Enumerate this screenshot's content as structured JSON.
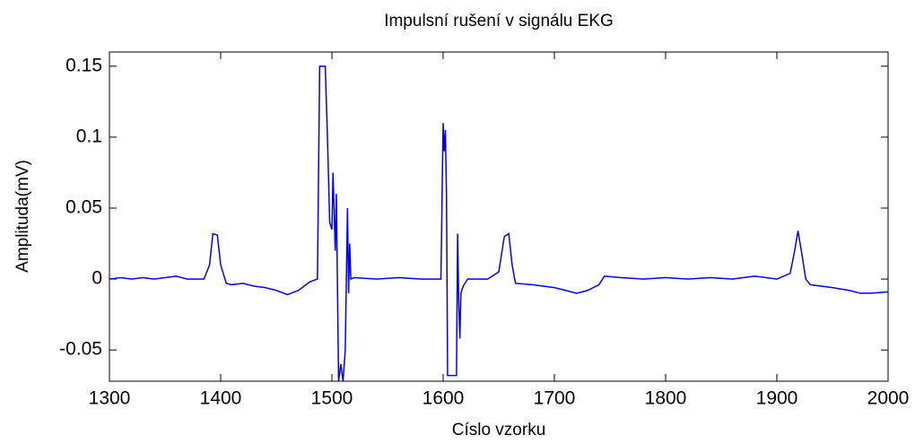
{
  "chart_data": {
    "type": "line",
    "title": "Impulsní rušení v signálu EKG",
    "xlabel": "Císlo vzorku",
    "ylabel": "Amplituda(mV)",
    "x": [
      1300,
      1310,
      1320,
      1330,
      1340,
      1350,
      1360,
      1370,
      1385,
      1390,
      1393,
      1397,
      1400,
      1405,
      1410,
      1420,
      1430,
      1440,
      1450,
      1460,
      1470,
      1480,
      1487,
      1489,
      1494,
      1496,
      1498,
      1500,
      1501,
      1503,
      1504,
      1506,
      1508,
      1510,
      1512,
      1513,
      1514,
      1515,
      1516,
      1517,
      1520,
      1540,
      1560,
      1580,
      1598,
      1600,
      1601,
      1602,
      1603,
      1604,
      1612,
      1613,
      1614,
      1615,
      1616,
      1618,
      1622,
      1640,
      1650,
      1655,
      1659,
      1662,
      1665,
      1680,
      1700,
      1720,
      1730,
      1740,
      1745,
      1760,
      1780,
      1800,
      1820,
      1840,
      1860,
      1880,
      1900,
      1912,
      1916,
      1919,
      1922,
      1926,
      1930,
      1950,
      1965,
      1975,
      1985,
      2000
    ],
    "series": [
      {
        "name": "EKG",
        "color": "#0000ff",
        "values": [
          0,
          0.001,
          0,
          0.001,
          0,
          0.001,
          0.002,
          0,
          0,
          0.01,
          0.032,
          0.031,
          0.01,
          -0.003,
          -0.004,
          -0.003,
          -0.005,
          -0.006,
          -0.008,
          -0.011,
          -0.008,
          -0.002,
          0,
          0.15,
          0.15,
          0.1,
          0.04,
          0.035,
          0.075,
          0.02,
          0.06,
          -0.072,
          -0.06,
          -0.072,
          -0.05,
          0,
          0.05,
          -0.01,
          0.025,
          0,
          0.001,
          0,
          0.001,
          0,
          0,
          0.11,
          0.09,
          0.105,
          0.06,
          -0.068,
          -0.068,
          0.032,
          -0.015,
          -0.042,
          -0.01,
          -0.005,
          0,
          0,
          0.005,
          0.03,
          0.032,
          0.01,
          -0.003,
          -0.004,
          -0.006,
          -0.01,
          -0.008,
          -0.004,
          0.002,
          0.001,
          0,
          0.001,
          0,
          0.001,
          0,
          0.002,
          0,
          0.004,
          0.02,
          0.034,
          0.02,
          0,
          -0.004,
          -0.006,
          -0.008,
          -0.01,
          -0.01,
          -0.009
        ]
      }
    ],
    "xlim": [
      1300,
      2000
    ],
    "xticks": [
      1300,
      1400,
      1500,
      1600,
      1700,
      1800,
      1900,
      2000
    ],
    "ylim": [
      -0.072,
      0.16
    ],
    "yticks": [
      -0.05,
      0,
      0.05,
      0.1,
      0.15
    ]
  }
}
